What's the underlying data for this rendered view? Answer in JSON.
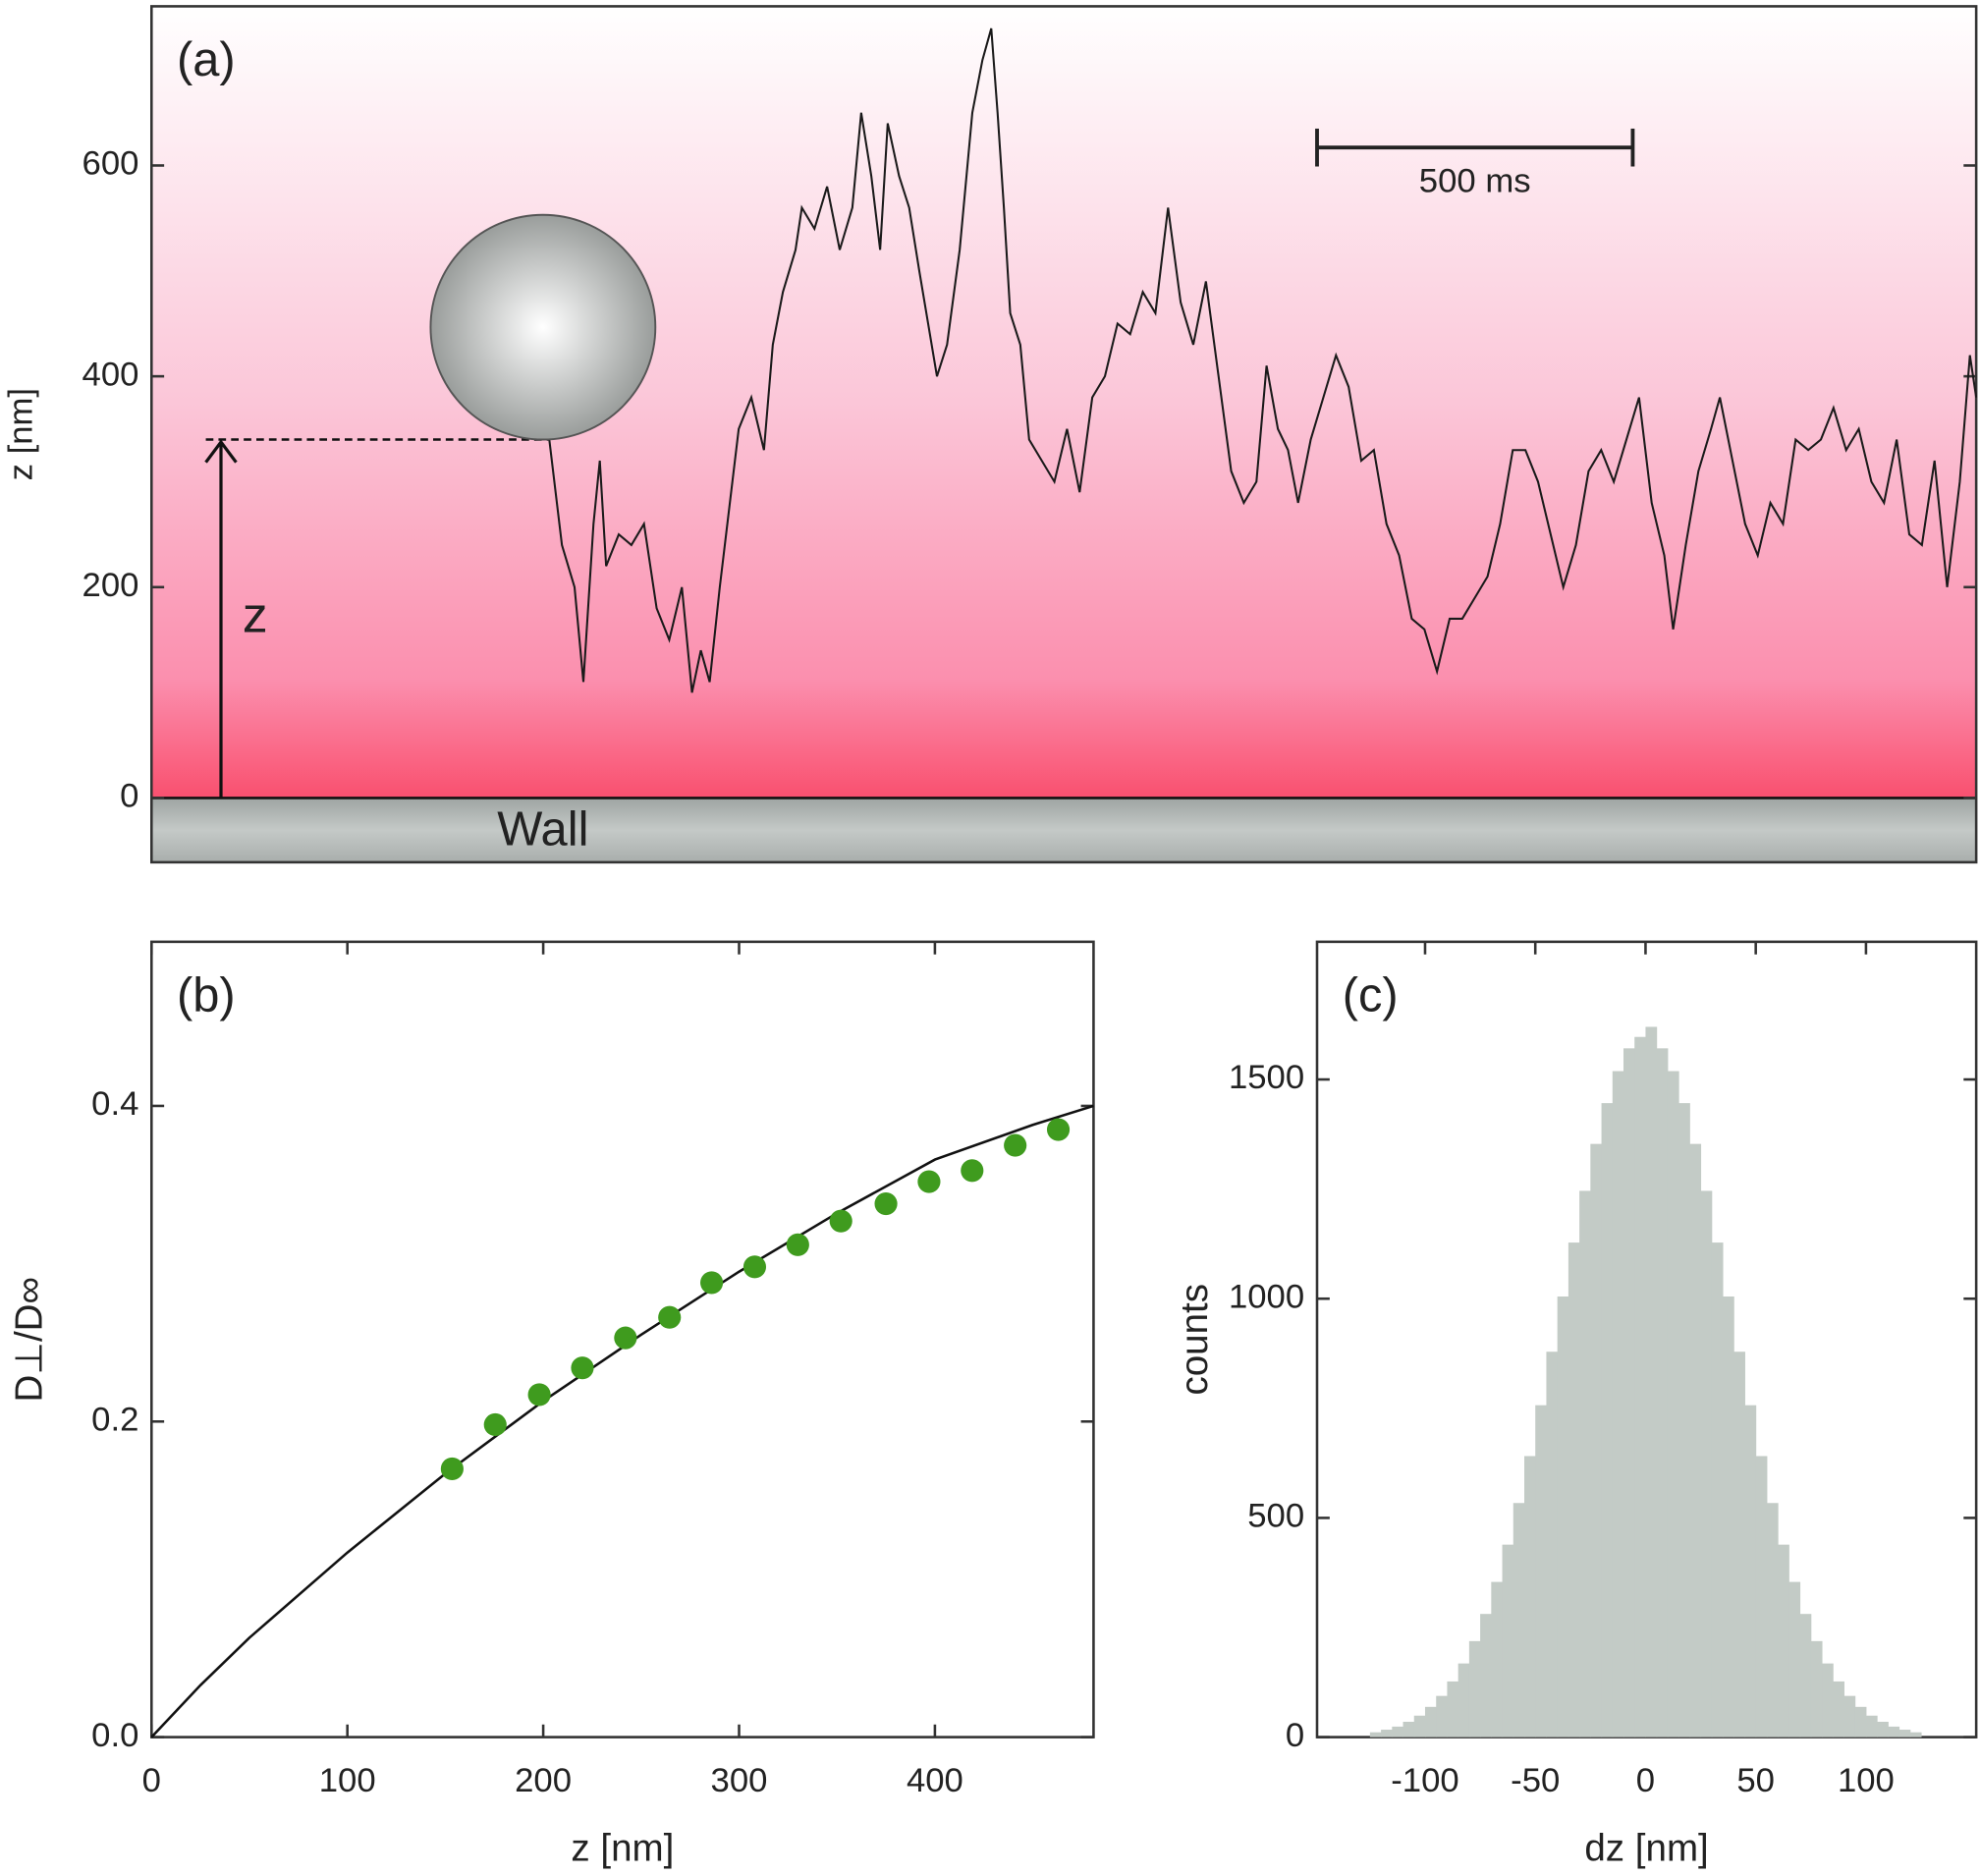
{
  "chart_data": [
    {
      "type": "line",
      "label": "(a)",
      "ylabel": "z [nm]",
      "color": "#1a1a1a",
      "xlim": [
        0,
        2890
      ],
      "ylim": [
        -61,
        751
      ],
      "yticks": [
        0,
        200,
        400,
        600
      ],
      "x": [
        630,
        650,
        670,
        684,
        700,
        710,
        720,
        740,
        760,
        780,
        800,
        820,
        840,
        856,
        870,
        884,
        900,
        910,
        930,
        950,
        970,
        984,
        1000,
        1020,
        1030,
        1050,
        1070,
        1090,
        1110,
        1124,
        1140,
        1154,
        1166,
        1184,
        1200,
        1216,
        1230,
        1244,
        1260,
        1280,
        1300,
        1316,
        1330,
        1340,
        1350,
        1360,
        1376,
        1390,
        1410,
        1430,
        1450,
        1470,
        1490,
        1510,
        1530,
        1550,
        1570,
        1590,
        1610,
        1630,
        1650,
        1670,
        1690,
        1710,
        1730,
        1750,
        1766,
        1784,
        1800,
        1816,
        1836,
        1856,
        1876,
        1896,
        1916,
        1936,
        1956,
        1976,
        1996,
        2016,
        2036,
        2056,
        2076,
        2096,
        2116,
        2136,
        2156,
        2176,
        2196,
        2216,
        2236,
        2256,
        2276,
        2296,
        2316,
        2336,
        2356,
        2376,
        2396,
        2410,
        2430,
        2450,
        2470,
        2484,
        2504,
        2524,
        2544,
        2564,
        2584,
        2604,
        2624,
        2644,
        2664,
        2684,
        2704,
        2724,
        2744,
        2764,
        2784,
        2804,
        2824,
        2844,
        2864,
        2880,
        2890
      ],
      "values": [
        340,
        240,
        200,
        110,
        260,
        320,
        220,
        250,
        240,
        260,
        180,
        150,
        200,
        100,
        140,
        110,
        200,
        250,
        350,
        380,
        330,
        430,
        480,
        520,
        560,
        540,
        580,
        520,
        560,
        650,
        590,
        520,
        640,
        590,
        560,
        500,
        450,
        400,
        430,
        520,
        650,
        700,
        730,
        650,
        560,
        460,
        430,
        340,
        320,
        300,
        350,
        290,
        380,
        400,
        450,
        440,
        480,
        460,
        560,
        470,
        430,
        490,
        400,
        310,
        280,
        300,
        410,
        350,
        330,
        280,
        340,
        380,
        420,
        390,
        320,
        330,
        260,
        230,
        170,
        160,
        120,
        170,
        170,
        190,
        210,
        260,
        330,
        330,
        300,
        250,
        200,
        240,
        310,
        330,
        300,
        340,
        380,
        280,
        230,
        160,
        240,
        310,
        350,
        380,
        320,
        260,
        230,
        280,
        260,
        340,
        330,
        340,
        370,
        330,
        350,
        300,
        280,
        340,
        250,
        240,
        320,
        200,
        300,
        420,
        380
      ],
      "scale_bar": {
        "x": [
          1846,
          2346
        ],
        "y": 617,
        "label": "500 ms"
      },
      "wall_label": "Wall",
      "arrow": {
        "label": "z",
        "value": 340
      }
    },
    {
      "type": "scatter",
      "label": "(b)",
      "xlabel": "z [nm]",
      "ylabel": "D⊥/D∞",
      "color": "#3f9b1e",
      "xlim": [
        0,
        481
      ],
      "ylim": [
        0,
        0.504
      ],
      "xticks": [
        0,
        100,
        200,
        300,
        400
      ],
      "yticks": [
        {
          "value": 0,
          "label": "0.0"
        },
        {
          "value": 0.2,
          "label": "0.2"
        },
        {
          "value": 0.4,
          "label": "0.4"
        }
      ],
      "x": [
        153.5,
        175.5,
        198,
        220,
        242,
        264.5,
        286,
        308,
        330,
        352,
        375,
        397,
        419,
        441,
        463
      ],
      "values": [
        0.17,
        0.198,
        0.217,
        0.234,
        0.253,
        0.266,
        0.288,
        0.298,
        0.312,
        0.327,
        0.338,
        0.352,
        0.359,
        0.375,
        0.385
      ],
      "fit": {
        "x": [
          0,
          25,
          50,
          100,
          150,
          200,
          250,
          300,
          350,
          400,
          450,
          481
        ],
        "values": [
          0,
          0.033,
          0.063,
          0.117,
          0.167,
          0.213,
          0.255,
          0.295,
          0.332,
          0.366,
          0.388,
          0.4
        ]
      }
    },
    {
      "type": "histogram",
      "label": "(c)",
      "xlabel": "dz [nm]",
      "ylabel": "counts",
      "color": "#c3cbc6",
      "xlim": [
        -149,
        150
      ],
      "ylim": [
        0,
        1814
      ],
      "xticks": [
        -100,
        -50,
        0,
        50,
        100
      ],
      "yticks": [
        0,
        500,
        1000,
        1500
      ],
      "bins": [
        -125,
        -120,
        -115,
        -110,
        -105,
        -100,
        -95,
        -90,
        -85,
        -80,
        -75,
        -70,
        -65,
        -60,
        -55,
        -50,
        -45,
        -40,
        -35,
        -30,
        -25,
        -20,
        -15,
        -10,
        -5,
        0,
        5,
        10,
        15,
        20,
        25,
        30,
        35,
        40,
        45,
        50,
        55,
        60,
        65,
        70,
        75,
        80,
        85,
        90,
        95,
        100,
        105,
        110,
        115,
        120,
        125
      ],
      "values": [
        11,
        17,
        24,
        35,
        49,
        69,
        94,
        127,
        168,
        219,
        281,
        354,
        439,
        534,
        641,
        757,
        879,
        1005,
        1128,
        1246,
        1353,
        1446,
        1519,
        1571,
        1597,
        1620,
        1571,
        1519,
        1446,
        1353,
        1246,
        1128,
        1005,
        879,
        757,
        641,
        534,
        439,
        354,
        281,
        219,
        168,
        127,
        94,
        69,
        49,
        35,
        24,
        17,
        11
      ]
    }
  ]
}
